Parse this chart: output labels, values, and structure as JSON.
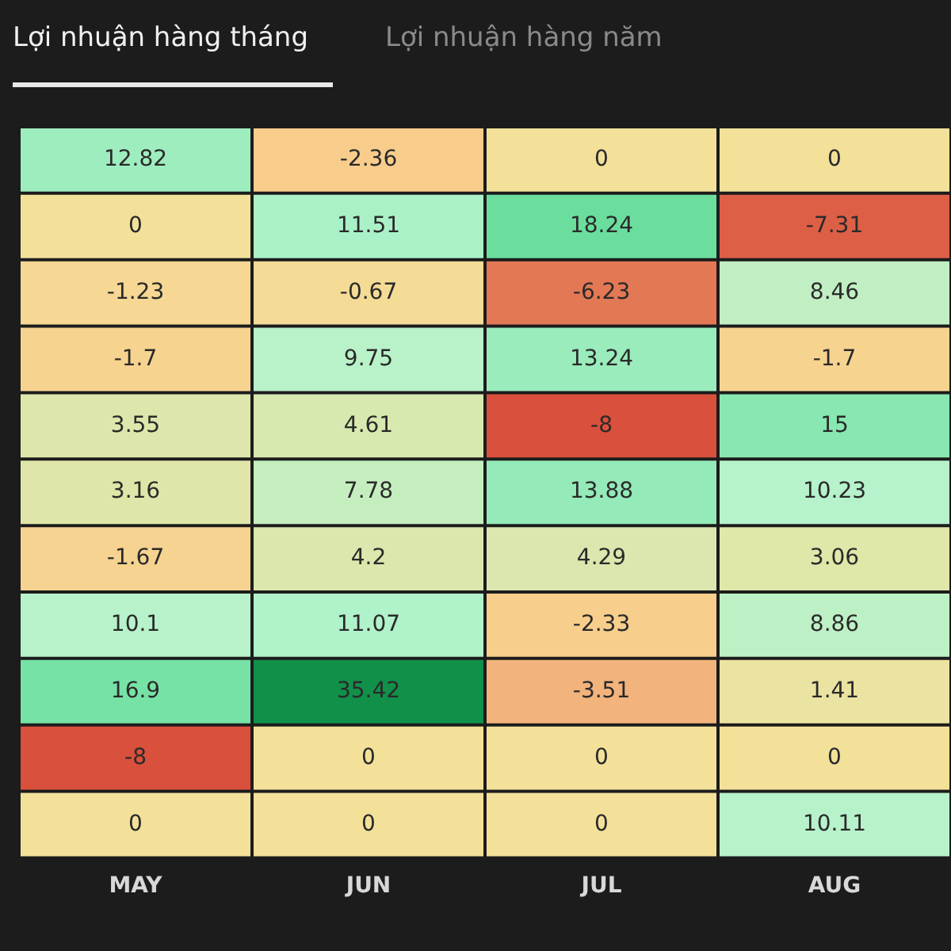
{
  "chart_data": {
    "type": "heatmap",
    "title": "Lợi nhuận hàng tháng",
    "subtitle": "Lợi nhuận hàng năm",
    "categories": [
      "MAY",
      "JUN",
      "JUL",
      "AUG"
    ],
    "y_categories": [
      null,
      null,
      null,
      null,
      null,
      null,
      null,
      null,
      null,
      null,
      null
    ],
    "cells": [
      [
        12.82,
        -2.36,
        0,
        0
      ],
      [
        0,
        11.51,
        18.24,
        -7.31
      ],
      [
        -1.23,
        -0.67,
        -6.23,
        8.46
      ],
      [
        -1.7,
        9.75,
        13.24,
        -1.7
      ],
      [
        3.55,
        4.61,
        -8,
        15
      ],
      [
        3.16,
        7.78,
        13.88,
        10.23
      ],
      [
        -1.67,
        4.2,
        4.29,
        3.06
      ],
      [
        10.1,
        11.07,
        -2.33,
        8.86
      ],
      [
        16.9,
        35.42,
        -3.51,
        1.41
      ],
      [
        -8,
        0,
        0,
        0
      ],
      [
        0,
        0,
        0,
        10.11
      ]
    ],
    "tick_labels": "x",
    "data_labels": true
  }
}
